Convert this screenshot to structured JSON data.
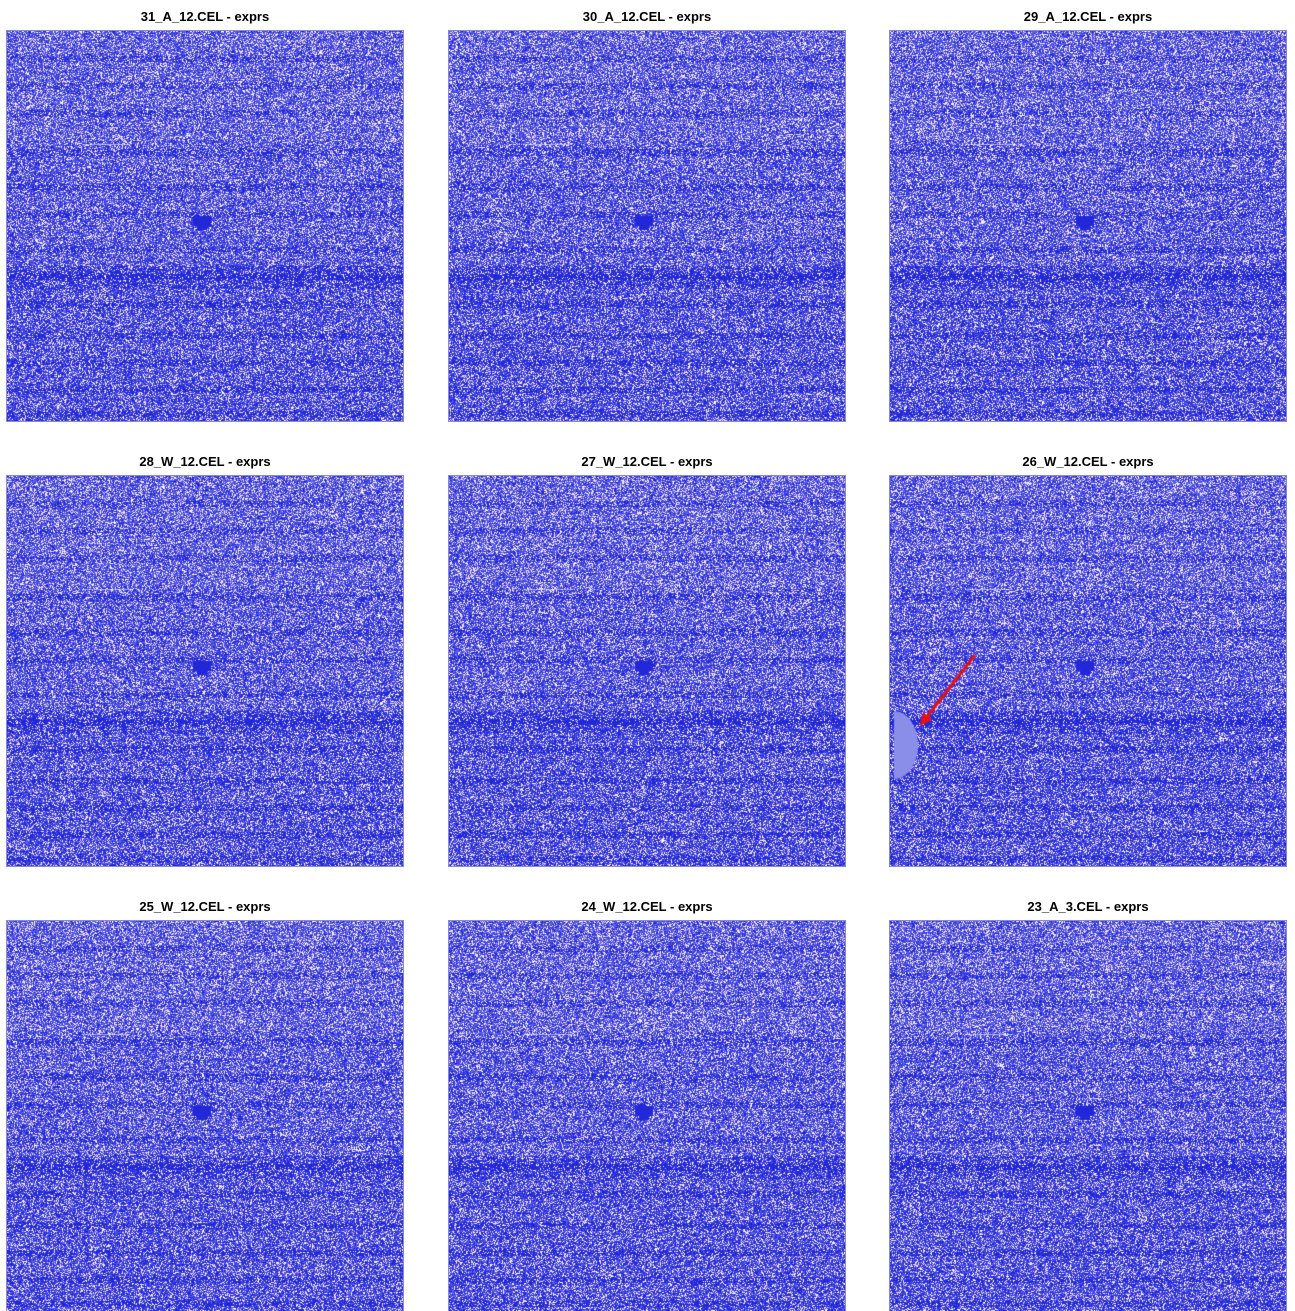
{
  "panels": [
    {
      "title": "31_A_12.CEL - exprs",
      "artifact": "ring"
    },
    {
      "title": "30_A_12.CEL - exprs",
      "artifact": "none"
    },
    {
      "title": "29_A_12.CEL - exprs",
      "artifact": "none"
    },
    {
      "title": "28_W_12.CEL - exprs",
      "artifact": "none"
    },
    {
      "title": "27_W_12.CEL - exprs",
      "artifact": "none"
    },
    {
      "title": "26_W_12.CEL - exprs",
      "artifact": "edge-blob",
      "annotation": "red-arrow"
    },
    {
      "title": "25_W_12.CEL - exprs",
      "artifact": "none"
    },
    {
      "title": "24_W_12.CEL - exprs",
      "artifact": "none"
    },
    {
      "title": "23_A_3.CEL - exprs",
      "artifact": "none"
    }
  ],
  "colors": {
    "base": "#5a5ee6",
    "dark_band": "#3a3ee0",
    "light_speckle": "#f2d6e6",
    "white_speckle": "#ffffff",
    "deep_blue": "#2228d8",
    "arrow": "#e81010",
    "blob": "#8a8ee8"
  }
}
